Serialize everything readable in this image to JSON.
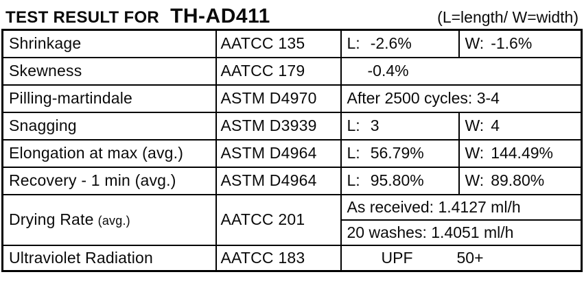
{
  "header": {
    "title_prefix": "TEST RESULT FOR",
    "product_code": "TH-AD411",
    "legend": "(L=length/ W=width)"
  },
  "table": {
    "rows": [
      {
        "name": "Shrinkage",
        "standard": "AATCC 135",
        "l_label": "L:",
        "l_value": "-2.6%",
        "w_label": "W:",
        "w_value": "-1.6%"
      },
      {
        "name": "Skewness",
        "standard": "AATCC 179",
        "value": "-0.4%"
      },
      {
        "name": "Pilling-martindale",
        "standard": "ASTM D4970",
        "value": "After     2500  cycles:  3-4"
      },
      {
        "name": "Snagging",
        "standard": "ASTM D3939",
        "l_label": "L:",
        "l_value": "3",
        "w_label": "W:",
        "w_value": "4"
      },
      {
        "name": "Elongation at max (avg.)",
        "standard": "ASTM D4964",
        "l_label": "L:",
        "l_value": "56.79%",
        "w_label": "W:",
        "w_value": "144.49%"
      },
      {
        "name": "Recovery - 1 min (avg.)",
        "standard": "ASTM D4964",
        "l_label": "L:",
        "l_value": "95.80%",
        "w_label": "W:",
        "w_value": "89.80%"
      },
      {
        "name": "Drying Rate",
        "name_suffix": "(avg.)",
        "standard": "AATCC 201",
        "sub_values": {
          "as_received": "As received:  1.4127  ml/h",
          "washed": "20 washes:   1.4051  ml/h"
        }
      },
      {
        "name": "Ultraviolet Radiation",
        "standard": "AATCC 183",
        "value_label": "UPF",
        "value": "50+"
      }
    ]
  }
}
